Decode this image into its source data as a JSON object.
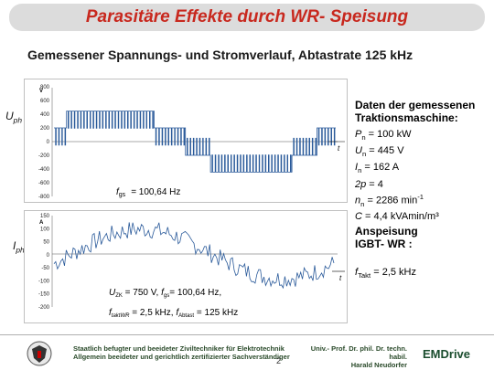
{
  "header": {
    "title": "Parasitäre Effekte durch WR- Speisung"
  },
  "subtitle": "Gemessener Spannungs- und Stromverlauf, Abtastrate 125 kHz",
  "charts": {
    "voltage": {
      "ylabel": "V",
      "side_label_base": "U",
      "side_label_sub": "ph",
      "t_label": "t",
      "ticks": [
        "800",
        "600",
        "400",
        "200",
        "0",
        "-200",
        "-400",
        "-600",
        "-800"
      ],
      "annotation_base": "f",
      "annotation_sub": "gs",
      "annotation_value": "= 100,64 Hz"
    },
    "current": {
      "ylabel": "A",
      "side_label_base": "I",
      "side_label_sub": "ph",
      "t_label": "t",
      "ticks": [
        "150",
        "100",
        "50",
        "0",
        "-50",
        "-100",
        "-150",
        "-200"
      ],
      "ann1": "U",
      "ann1_sub": "ZK",
      "ann1_rest": " = 750 V, ",
      "ann1_f": "f",
      "ann1_fsub": "gs",
      "ann1_val": "= 100,64 Hz,",
      "ann2_f": "f",
      "ann2_sub": "taktWR",
      "ann2_rest": " = 2,5 kHz, ",
      "ann2_f2": "f",
      "ann2_sub2": "Abtast",
      "ann2_val": " = 125 kHz"
    }
  },
  "chart_data": [
    {
      "type": "line",
      "title": "",
      "xlabel": "t",
      "ylabel": "V",
      "ylim": [
        -800,
        800
      ],
      "yticks": [
        800,
        600,
        400,
        200,
        0,
        -200,
        -400,
        -600,
        -800
      ],
      "series": [
        {
          "values": [
            0
          ]
        }
      ]
    },
    {
      "type": "line",
      "title": "",
      "xlabel": "t",
      "ylabel": "A",
      "ylim": [
        -200,
        150
      ],
      "yticks": [
        150,
        100,
        50,
        0,
        -50,
        -100,
        -150,
        -200
      ],
      "series": [
        {
          "values": [
            0
          ]
        }
      ]
    }
  ],
  "machine": {
    "heading1": "Daten der gemessenen",
    "heading2": "Traktionsmaschine:",
    "rows": [
      {
        "sym": "P",
        "sub": "n",
        "sup": "",
        "eq": " =",
        "val": "100 kW"
      },
      {
        "sym": "U",
        "sub": "n",
        "sup": "",
        "eq": " =",
        "val": "445 V"
      },
      {
        "sym": "I",
        "sub": "n",
        "sup": "",
        "eq": " =",
        "val": "162 A"
      },
      {
        "sym": "2p",
        "sub": "",
        "sup": "",
        "eq": " =",
        "val": "4"
      },
      {
        "sym": "n",
        "sub": "n",
        "sup": "",
        "eq": " =",
        "val": "2286 min",
        "val_sup": "-1"
      },
      {
        "sym": "C",
        "sub": "",
        "sup": "",
        "eq": " =",
        "val": "4,4 kVAmin/m³"
      }
    ]
  },
  "supply": {
    "heading1": "Anspeisung",
    "heading2": "IGBT- WR :",
    "f_sym": "f",
    "f_sub": "Takt",
    "f_val": " =   2,5 kHz"
  },
  "footer": {
    "line1": "Staatlich befugter und beeideter Ziviltechniker für Elektrotechnik",
    "line2": "Allgemein beeideter und gerichtlich zertifizierter Sachverständiger",
    "page": "2",
    "prof1": "Univ.- Prof. Dr. phil. Dr. techn. habil.",
    "prof2": "Harald Neudorfer",
    "brand": "EMDrive"
  }
}
